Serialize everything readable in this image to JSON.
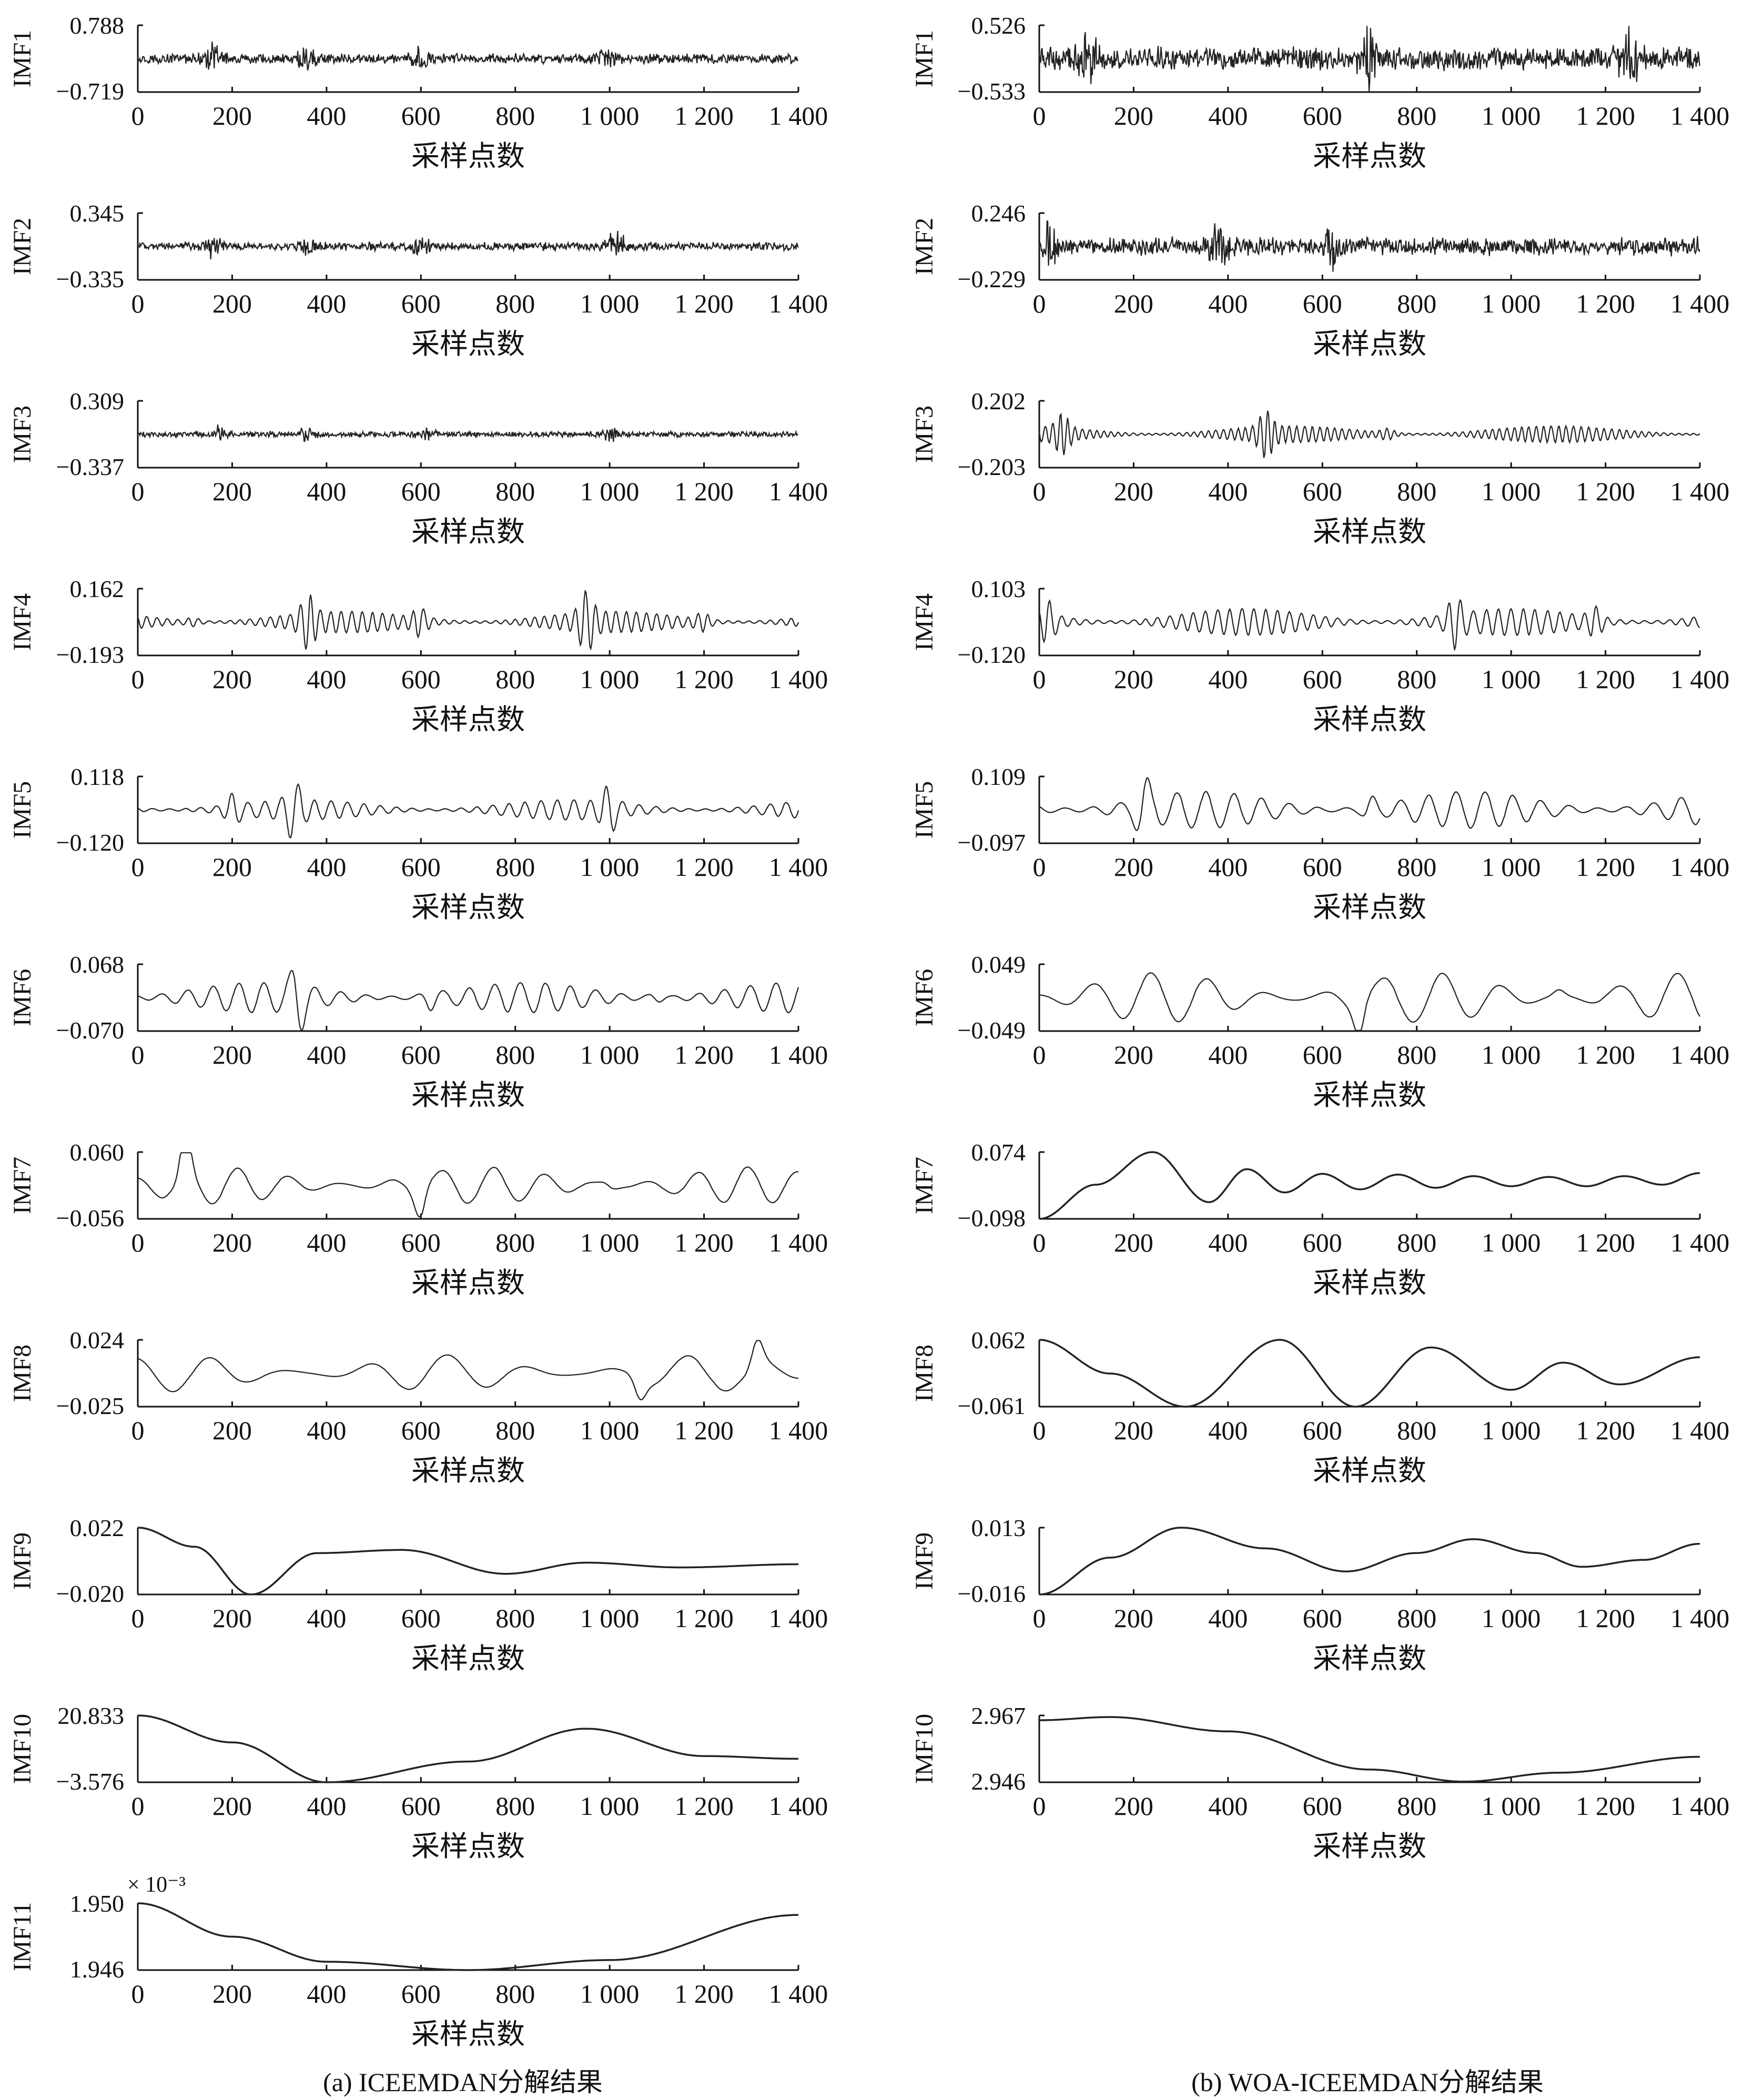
{
  "figure": {
    "caption_a": "(a)  ICEEMDAN分解结果",
    "caption_b": "(b)  WOA-ICEEMDAN分解结果"
  },
  "chart_data": [
    {
      "type": "line",
      "title": "(a)  ICEEMDAN分解结果",
      "xlabel": "采样点数",
      "x_range": [
        0,
        1400
      ],
      "x_ticks": [
        "0",
        "200",
        "400",
        "600",
        "800",
        "1 000",
        "1 200",
        "1 400"
      ],
      "panels": [
        {
          "name": "IMF1",
          "ylabel": "IMF1",
          "y_max_label": "0.788",
          "y_min_label": "−0.719",
          "ylim": [
            -0.719,
            0.788
          ],
          "pattern": "noise",
          "noise_level": 0.12,
          "bursts": [
            160,
            360,
            600,
            1000
          ]
        },
        {
          "name": "IMF2",
          "ylabel": "IMF2",
          "y_max_label": "0.345",
          "y_min_label": "−0.335",
          "ylim": [
            -0.335,
            0.345
          ],
          "pattern": "noise",
          "noise_level": 0.1,
          "bursts": [
            160,
            360,
            600,
            1000,
            1020
          ]
        },
        {
          "name": "IMF3",
          "ylabel": "IMF3",
          "y_max_label": "0.309",
          "y_min_label": "−0.337",
          "ylim": [
            -0.337,
            0.309
          ],
          "pattern": "noise",
          "noise_level": 0.07,
          "bursts": [
            170,
            360,
            610,
            1000
          ]
        },
        {
          "name": "IMF4",
          "ylabel": "IMF4",
          "y_max_label": "0.162",
          "y_min_label": "−0.193",
          "ylim": [
            -0.193,
            0.162
          ],
          "pattern": "oscillation",
          "period": 22,
          "amplitude": 0.32,
          "bursts": [
            120,
            360,
            600,
            950,
            1200
          ]
        },
        {
          "name": "IMF5",
          "ylabel": "IMF5",
          "y_max_label": "0.118",
          "y_min_label": "−0.120",
          "ylim": [
            -0.12,
            0.118
          ],
          "pattern": "oscillation",
          "period": 35,
          "amplitude": 0.3,
          "bursts": [
            200,
            330,
            1000
          ]
        },
        {
          "name": "IMF6",
          "ylabel": "IMF6",
          "y_max_label": "0.068",
          "y_min_label": "−0.070",
          "ylim": [
            -0.07,
            0.068
          ],
          "pattern": "oscillation",
          "period": 55,
          "amplitude": 0.45,
          "bursts": [
            340,
            620,
            1100
          ]
        },
        {
          "name": "IMF7",
          "ylabel": "IMF7",
          "y_max_label": "0.060",
          "y_min_label": "−0.056",
          "ylim": [
            -0.056,
            0.06
          ],
          "pattern": "oscillation",
          "period": 110,
          "amplitude": 0.55,
          "bursts": [
            100,
            600,
            1000
          ]
        },
        {
          "name": "IMF8",
          "ylabel": "IMF8",
          "y_max_label": "0.024",
          "y_min_label": "−0.025",
          "ylim": [
            -0.025,
            0.024
          ],
          "pattern": "oscillation",
          "period": 170,
          "amplitude": 0.55,
          "bursts": [
            1060,
            1310
          ]
        },
        {
          "name": "IMF9",
          "ylabel": "IMF9",
          "y_max_label": "0.022",
          "y_min_label": "−0.020",
          "ylim": [
            -0.02,
            0.022
          ],
          "pattern": "trend",
          "x": [
            0,
            120,
            240,
            380,
            560,
            780,
            950,
            1150,
            1400
          ],
          "y": [
            0.022,
            0.01,
            -0.02,
            0.006,
            0.008,
            -0.007,
            0.0,
            -0.003,
            -0.001
          ]
        },
        {
          "name": "IMF10",
          "ylabel": "IMF10",
          "y_max_label": "20.833",
          "y_min_label": "−3.576",
          "ylim": [
            -3.576,
            20.833
          ],
          "pattern": "trend",
          "x": [
            0,
            200,
            400,
            700,
            950,
            1200,
            1400
          ],
          "y": [
            20.833,
            11.0,
            -3.576,
            4.0,
            16.0,
            6.0,
            5.0
          ]
        },
        {
          "name": "IMF11",
          "ylabel": "IMF11",
          "y_max_label": "1.950",
          "y_min_label": "1.946",
          "scale_label": "× 10⁻³",
          "ylim": [
            1.946,
            1.95
          ],
          "pattern": "trend",
          "x": [
            0,
            200,
            400,
            700,
            1000,
            1400
          ],
          "y": [
            1.95,
            1.948,
            1.9465,
            1.946,
            1.9466,
            1.9493
          ]
        }
      ]
    },
    {
      "type": "line",
      "title": "(b)  WOA-ICEEMDAN分解结果",
      "xlabel": "采样点数",
      "x_range": [
        0,
        1400
      ],
      "x_ticks": [
        "0",
        "200",
        "400",
        "600",
        "800",
        "1 000",
        "1 200",
        "1 400"
      ],
      "panels": [
        {
          "name": "IMF1",
          "ylabel": "IMF1",
          "y_max_label": "0.526",
          "y_min_label": "−0.533",
          "ylim": [
            -0.533,
            0.526
          ],
          "pattern": "noise",
          "noise_level": 0.28,
          "bursts": [
            100,
            700,
            1250
          ]
        },
        {
          "name": "IMF2",
          "ylabel": "IMF2",
          "y_max_label": "0.246",
          "y_min_label": "−0.229",
          "ylim": [
            -0.229,
            0.246
          ],
          "pattern": "noise",
          "noise_level": 0.22,
          "bursts": [
            20,
            380,
            620
          ]
        },
        {
          "name": "IMF3",
          "ylabel": "IMF3",
          "y_max_label": "0.202",
          "y_min_label": "−0.203",
          "ylim": [
            -0.203,
            0.202
          ],
          "pattern": "oscillation",
          "period": 16,
          "amplitude": 0.25,
          "bursts": [
            50,
            480,
            740
          ]
        },
        {
          "name": "IMF4",
          "ylabel": "IMF4",
          "y_max_label": "0.103",
          "y_min_label": "−0.120",
          "ylim": [
            -0.12,
            0.103
          ],
          "pattern": "oscillation",
          "period": 26,
          "amplitude": 0.4,
          "bursts": [
            20,
            880,
            1180
          ]
        },
        {
          "name": "IMF5",
          "ylabel": "IMF5",
          "y_max_label": "0.109",
          "y_min_label": "−0.097",
          "ylim": [
            -0.097,
            0.109
          ],
          "pattern": "oscillation",
          "period": 60,
          "amplitude": 0.55,
          "bursts": [
            220,
            700
          ]
        },
        {
          "name": "IMF6",
          "ylabel": "IMF6",
          "y_max_label": "0.049",
          "y_min_label": "−0.049",
          "ylim": [
            -0.049,
            0.049
          ],
          "pattern": "oscillation",
          "period": 125,
          "amplitude": 0.75,
          "bursts": [
            680,
            1100
          ]
        },
        {
          "name": "IMF7",
          "ylabel": "IMF7",
          "y_max_label": "0.074",
          "y_min_label": "−0.098",
          "ylim": [
            -0.098,
            0.074
          ],
          "pattern": "trend",
          "x": [
            0,
            120,
            240,
            360,
            440,
            520,
            600,
            680,
            760,
            840,
            920,
            1000,
            1080,
            1160,
            1240,
            1320,
            1400
          ],
          "y": [
            -0.098,
            -0.01,
            0.074,
            -0.055,
            0.03,
            -0.03,
            0.018,
            -0.022,
            0.016,
            -0.018,
            0.012,
            -0.014,
            0.01,
            -0.014,
            0.012,
            -0.01,
            0.02
          ]
        },
        {
          "name": "IMF8",
          "ylabel": "IMF8",
          "y_max_label": "0.062",
          "y_min_label": "−0.061",
          "ylim": [
            -0.061,
            0.062
          ],
          "pattern": "trend",
          "x": [
            0,
            150,
            310,
            510,
            670,
            830,
            1000,
            1110,
            1230,
            1400
          ],
          "y": [
            0.062,
            0.0,
            -0.061,
            0.062,
            -0.061,
            0.048,
            -0.03,
            0.02,
            -0.02,
            0.03
          ]
        },
        {
          "name": "IMF9",
          "ylabel": "IMF9",
          "y_max_label": "0.013",
          "y_min_label": "−0.016",
          "ylim": [
            -0.016,
            0.013
          ],
          "pattern": "trend",
          "x": [
            0,
            150,
            300,
            480,
            650,
            800,
            920,
            1050,
            1150,
            1280,
            1400
          ],
          "y": [
            -0.016,
            0.0,
            0.013,
            0.004,
            -0.006,
            0.002,
            0.008,
            0.002,
            -0.004,
            -0.001,
            0.006
          ]
        },
        {
          "name": "IMF10",
          "ylabel": "IMF10",
          "y_max_label": "2.967",
          "y_min_label": "2.946",
          "ylim": [
            2.946,
            2.967
          ],
          "pattern": "trend",
          "x": [
            0,
            150,
            400,
            700,
            900,
            1100,
            1400
          ],
          "y": [
            2.9655,
            2.9665,
            2.962,
            2.95,
            2.9462,
            2.949,
            2.954
          ]
        }
      ]
    }
  ]
}
